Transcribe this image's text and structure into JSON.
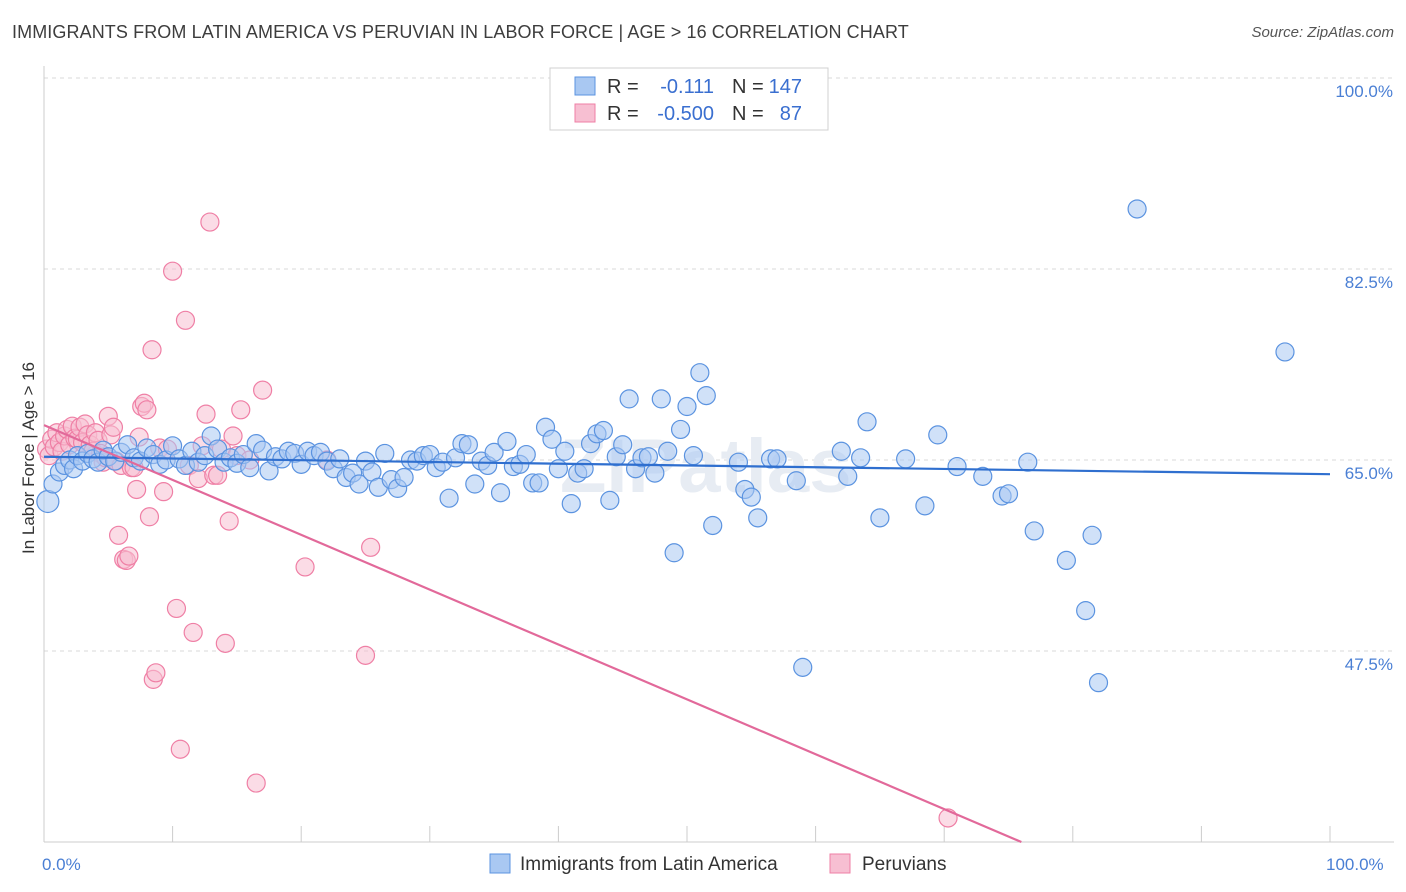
{
  "title": "IMMIGRANTS FROM LATIN AMERICA VS PERUVIAN IN LABOR FORCE | AGE > 16 CORRELATION CHART",
  "source": "Source: ZipAtlas.com",
  "watermark": "ZIPatlas",
  "colors": {
    "blue_fill": "#a9c8f2",
    "blue_stroke": "#5b93e0",
    "blue_line": "#2f6fcf",
    "pink_fill": "#f7bfd2",
    "pink_stroke": "#ef7fa5",
    "pink_line": "#e2699a",
    "tick_text": "#4a7fd4",
    "grid": "#d8d8d8"
  },
  "legend": {
    "rows": [
      {
        "r_label": "R =",
        "r_value": "-0.111",
        "n_label": "N =",
        "n_value": "147"
      },
      {
        "r_label": "R =",
        "r_value": "-0.500",
        "n_label": "N =",
        "n_value": "87"
      }
    ]
  },
  "chart_data": {
    "type": "scatter",
    "title": "IMMIGRANTS FROM LATIN AMERICA VS PERUVIAN IN LABOR FORCE | AGE > 16 CORRELATION CHART",
    "xlabel": "",
    "ylabel": "In Labor Force | Age > 16",
    "xlim": [
      0,
      100
    ],
    "ylim": [
      30,
      100
    ],
    "x_tick_labels": [
      "0.0%",
      "100.0%"
    ],
    "y_ticks": [
      47.5,
      65.0,
      82.5,
      100.0
    ],
    "y_tick_labels": [
      "47.5%",
      "65.0%",
      "82.5%",
      "100.0%"
    ],
    "grid": true,
    "legend_position": "top-center",
    "series": [
      {
        "name": "Immigrants from Latin America",
        "color": "blue",
        "R": -0.111,
        "N": 147,
        "trend": [
          [
            0,
            65.3
          ],
          [
            100,
            63.7
          ]
        ],
        "points": [
          [
            0.3,
            61.2
          ],
          [
            0.7,
            62.8
          ],
          [
            1.2,
            63.9
          ],
          [
            1.6,
            64.5
          ],
          [
            2.0,
            65.0
          ],
          [
            2.3,
            64.2
          ],
          [
            2.6,
            65.4
          ],
          [
            3.0,
            64.9
          ],
          [
            3.4,
            65.6
          ],
          [
            3.8,
            65.1
          ],
          [
            4.2,
            64.8
          ],
          [
            4.6,
            65.9
          ],
          [
            5.0,
            65.3
          ],
          [
            5.5,
            64.9
          ],
          [
            6.0,
            65.7
          ],
          [
            6.5,
            66.4
          ],
          [
            7.0,
            65.2
          ],
          [
            7.5,
            64.9
          ],
          [
            8.0,
            66.1
          ],
          [
            8.5,
            65.5
          ],
          [
            9.0,
            64.6
          ],
          [
            9.5,
            65.0
          ],
          [
            10.0,
            66.3
          ],
          [
            10.5,
            65.1
          ],
          [
            11.0,
            64.5
          ],
          [
            11.5,
            65.8
          ],
          [
            12.0,
            64.8
          ],
          [
            12.5,
            65.4
          ],
          [
            13.0,
            67.2
          ],
          [
            13.5,
            66.0
          ],
          [
            14.0,
            64.8
          ],
          [
            14.5,
            65.2
          ],
          [
            15.0,
            64.7
          ],
          [
            15.5,
            65.5
          ],
          [
            16.0,
            64.3
          ],
          [
            16.5,
            66.5
          ],
          [
            17.0,
            65.9
          ],
          [
            17.5,
            64.0
          ],
          [
            18.0,
            65.3
          ],
          [
            18.5,
            65.1
          ],
          [
            19.0,
            65.8
          ],
          [
            19.5,
            65.6
          ],
          [
            20.0,
            64.6
          ],
          [
            20.5,
            65.8
          ],
          [
            21.0,
            65.4
          ],
          [
            21.5,
            65.7
          ],
          [
            22.0,
            64.9
          ],
          [
            22.5,
            64.2
          ],
          [
            23.0,
            65.1
          ],
          [
            23.5,
            63.4
          ],
          [
            24.0,
            63.8
          ],
          [
            24.5,
            62.8
          ],
          [
            25.0,
            64.9
          ],
          [
            25.5,
            63.9
          ],
          [
            26.0,
            62.5
          ],
          [
            26.5,
            65.6
          ],
          [
            27.0,
            63.2
          ],
          [
            27.5,
            62.4
          ],
          [
            28.0,
            63.4
          ],
          [
            28.5,
            65.0
          ],
          [
            29.0,
            64.9
          ],
          [
            29.5,
            65.4
          ],
          [
            30.0,
            65.5
          ],
          [
            30.5,
            64.3
          ],
          [
            31.0,
            64.8
          ],
          [
            31.5,
            61.5
          ],
          [
            32.0,
            65.2
          ],
          [
            32.5,
            66.5
          ],
          [
            33.0,
            66.4
          ],
          [
            33.5,
            62.8
          ],
          [
            34.0,
            64.9
          ],
          [
            34.5,
            64.5
          ],
          [
            35.0,
            65.7
          ],
          [
            35.5,
            62.0
          ],
          [
            36.0,
            66.7
          ],
          [
            36.5,
            64.4
          ],
          [
            37.0,
            64.6
          ],
          [
            37.5,
            65.5
          ],
          [
            38.0,
            62.9
          ],
          [
            38.5,
            62.9
          ],
          [
            39.0,
            68.0
          ],
          [
            39.5,
            66.9
          ],
          [
            40.0,
            64.2
          ],
          [
            40.5,
            65.8
          ],
          [
            41.0,
            61.0
          ],
          [
            41.5,
            63.8
          ],
          [
            42.0,
            64.2
          ],
          [
            42.5,
            66.5
          ],
          [
            43.0,
            67.4
          ],
          [
            43.5,
            67.7
          ],
          [
            44.0,
            61.3
          ],
          [
            44.5,
            65.3
          ],
          [
            45.0,
            66.4
          ],
          [
            45.5,
            70.6
          ],
          [
            46.0,
            64.2
          ],
          [
            46.5,
            65.2
          ],
          [
            47.0,
            65.3
          ],
          [
            47.5,
            63.8
          ],
          [
            48.0,
            70.6
          ],
          [
            48.5,
            65.8
          ],
          [
            49.0,
            56.5
          ],
          [
            49.5,
            67.8
          ],
          [
            50.0,
            69.9
          ],
          [
            50.5,
            65.4
          ],
          [
            51.0,
            73.0
          ],
          [
            51.5,
            70.9
          ],
          [
            52.0,
            59.0
          ],
          [
            54.0,
            64.8
          ],
          [
            54.5,
            62.3
          ],
          [
            55.0,
            61.6
          ],
          [
            55.5,
            59.7
          ],
          [
            56.5,
            65.1
          ],
          [
            57.0,
            65.1
          ],
          [
            58.5,
            63.1
          ],
          [
            59.0,
            46.0
          ],
          [
            62.0,
            65.8
          ],
          [
            62.5,
            63.5
          ],
          [
            63.5,
            65.2
          ],
          [
            64.0,
            68.5
          ],
          [
            65.0,
            59.7
          ],
          [
            67.0,
            65.1
          ],
          [
            68.5,
            60.8
          ],
          [
            69.5,
            67.3
          ],
          [
            71.0,
            64.4
          ],
          [
            73.0,
            63.5
          ],
          [
            74.5,
            61.7
          ],
          [
            75.0,
            61.9
          ],
          [
            76.5,
            64.8
          ],
          [
            77.0,
            58.5
          ],
          [
            79.5,
            55.8
          ],
          [
            81.0,
            51.2
          ],
          [
            81.5,
            58.1
          ],
          [
            82.0,
            44.6
          ],
          [
            85.0,
            88.0
          ],
          [
            96.5,
            74.9
          ]
        ]
      },
      {
        "name": "Peruvians",
        "color": "pink",
        "R": -0.5,
        "N": 87,
        "trend": [
          [
            0,
            68.2
          ],
          [
            76,
            30
          ]
        ],
        "points": [
          [
            0.2,
            66.0
          ],
          [
            0.4,
            65.4
          ],
          [
            0.6,
            66.9
          ],
          [
            0.8,
            66.2
          ],
          [
            1.0,
            67.5
          ],
          [
            1.2,
            66.6
          ],
          [
            1.4,
            65.8
          ],
          [
            1.6,
            67.2
          ],
          [
            1.8,
            67.8
          ],
          [
            2.0,
            66.4
          ],
          [
            2.2,
            68.1
          ],
          [
            2.4,
            67.0
          ],
          [
            2.6,
            66.9
          ],
          [
            2.8,
            68.0
          ],
          [
            3.0,
            66.6
          ],
          [
            3.2,
            68.3
          ],
          [
            3.4,
            67.3
          ],
          [
            3.6,
            66.4
          ],
          [
            3.8,
            65.8
          ],
          [
            4.0,
            67.5
          ],
          [
            4.2,
            66.8
          ],
          [
            4.4,
            65.6
          ],
          [
            4.6,
            64.8
          ],
          [
            4.8,
            65.2
          ],
          [
            5.0,
            69.0
          ],
          [
            5.2,
            67.3
          ],
          [
            5.4,
            68.0
          ],
          [
            5.6,
            64.9
          ],
          [
            5.8,
            58.1
          ],
          [
            6.0,
            64.5
          ],
          [
            6.2,
            55.9
          ],
          [
            6.4,
            55.8
          ],
          [
            6.6,
            56.2
          ],
          [
            6.8,
            64.3
          ],
          [
            7.0,
            64.3
          ],
          [
            7.2,
            62.3
          ],
          [
            7.4,
            67.1
          ],
          [
            7.6,
            69.9
          ],
          [
            7.8,
            70.2
          ],
          [
            8.0,
            69.6
          ],
          [
            8.2,
            59.8
          ],
          [
            8.4,
            75.1
          ],
          [
            8.5,
            44.9
          ],
          [
            8.7,
            45.5
          ],
          [
            9.0,
            66.1
          ],
          [
            9.3,
            62.1
          ],
          [
            9.6,
            66.0
          ],
          [
            10.0,
            82.3
          ],
          [
            10.3,
            51.4
          ],
          [
            10.6,
            38.5
          ],
          [
            11.0,
            77.8
          ],
          [
            11.3,
            64.5
          ],
          [
            11.6,
            49.2
          ],
          [
            12.0,
            63.3
          ],
          [
            12.3,
            66.3
          ],
          [
            12.6,
            69.2
          ],
          [
            12.9,
            86.8
          ],
          [
            13.2,
            63.6
          ],
          [
            13.5,
            63.6
          ],
          [
            13.8,
            66.0
          ],
          [
            14.1,
            48.2
          ],
          [
            14.4,
            59.4
          ],
          [
            14.7,
            67.2
          ],
          [
            15.0,
            65.4
          ],
          [
            15.3,
            69.6
          ],
          [
            16.0,
            65.0
          ],
          [
            16.5,
            35.4
          ],
          [
            17.0,
            71.4
          ],
          [
            20.3,
            55.2
          ],
          [
            22.0,
            65.0
          ],
          [
            25.0,
            47.1
          ],
          [
            25.4,
            57.0
          ],
          [
            70.3,
            32.2
          ]
        ]
      }
    ]
  },
  "bottom_legend": [
    {
      "label": "Immigrants from Latin America",
      "color": "blue"
    },
    {
      "label": "Peruvians",
      "color": "pink"
    }
  ]
}
